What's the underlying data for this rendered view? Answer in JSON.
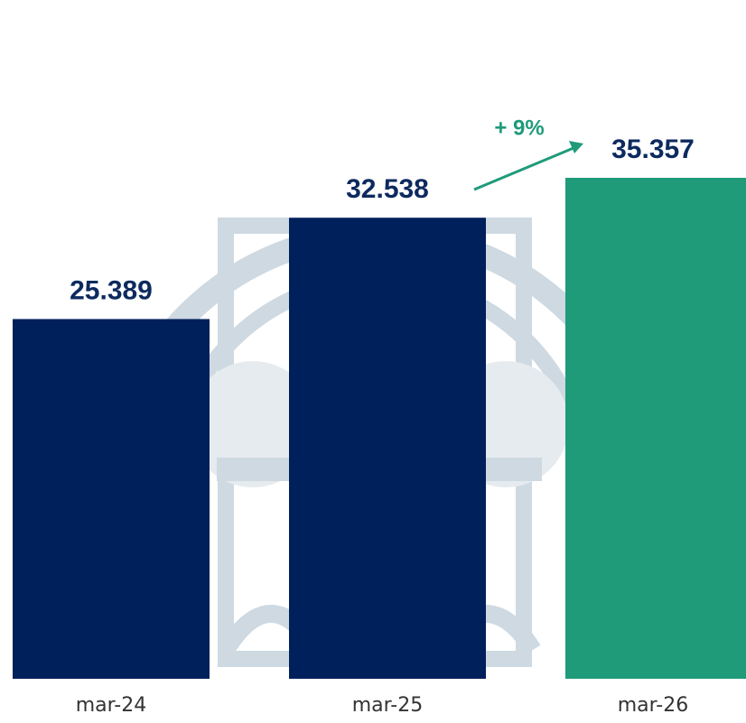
{
  "chart_data": {
    "type": "bar",
    "categories": [
      "mar-24",
      "mar-25",
      "mar-26"
    ],
    "values": [
      25389,
      32538,
      35357
    ],
    "value_labels": [
      "25.389",
      "32.538",
      "35.357"
    ],
    "colors": [
      "#00205b",
      "#00205b",
      "#1f9b7a"
    ],
    "annotation": "+ 9%"
  }
}
